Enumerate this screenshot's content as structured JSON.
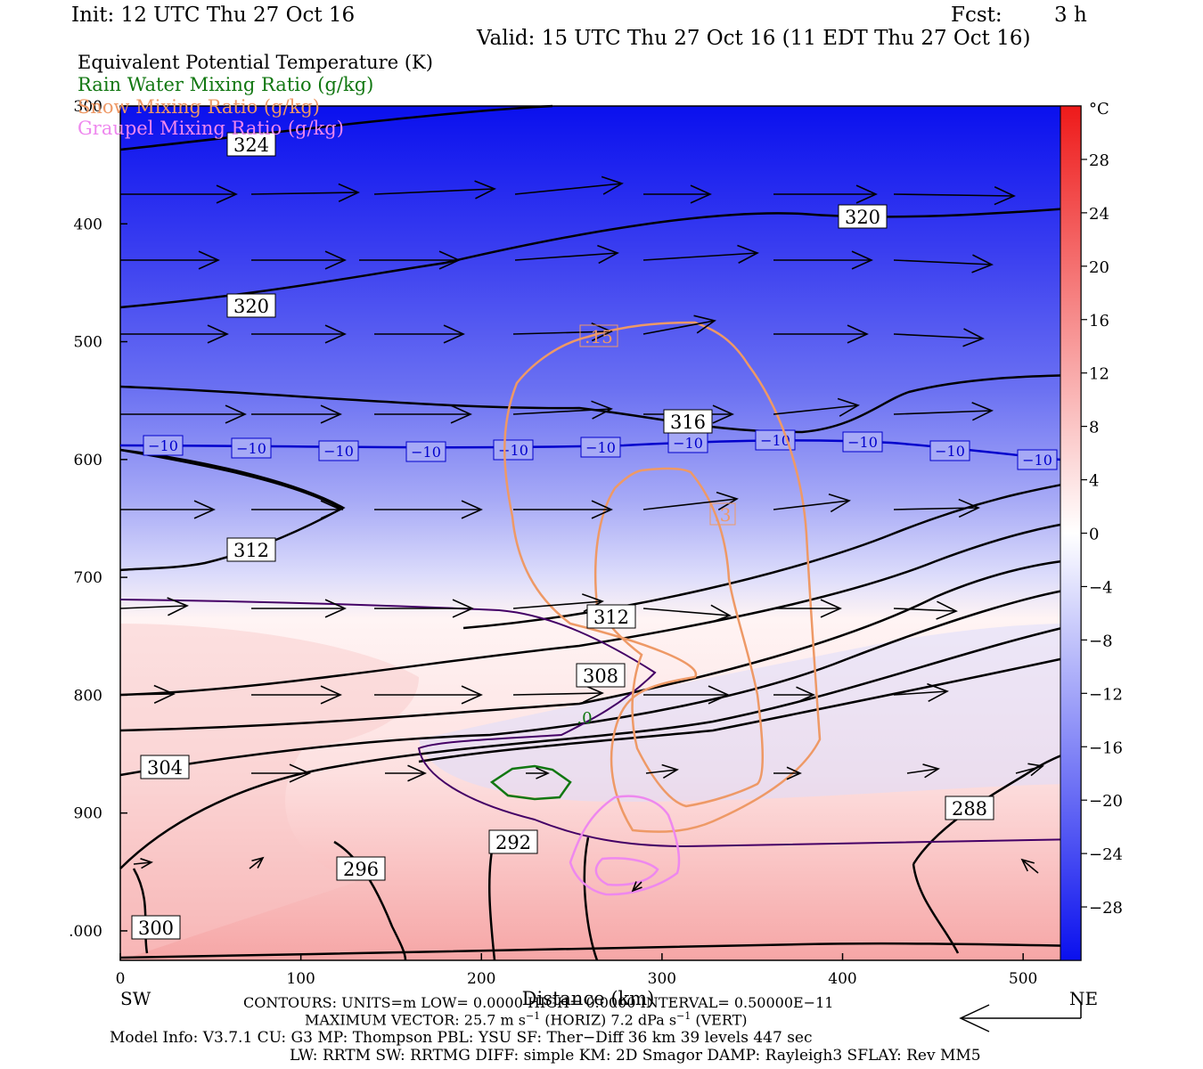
{
  "header": {
    "init": "Init: 12 UTC Thu 27 Oct 16",
    "fcst_label": "Fcst:",
    "fcst_value": "3 h",
    "valid": "Valid: 15 UTC Thu 27 Oct 16 (11 EDT Thu 27 Oct 16)"
  },
  "legend": [
    {
      "label": "Equivalent Potential Temperature (K)",
      "color": "#000000"
    },
    {
      "label": "Rain Water Mixing Ratio (g/kg)",
      "color": "#117711"
    },
    {
      "label": "Snow Mixing Ratio (g/kg)",
      "color": "#ee9966"
    },
    {
      "label": "Graupel Mixing Ratio (g/kg)",
      "color": "#ee88ee"
    }
  ],
  "chart_data": {
    "type": "cross-section",
    "x_axis": {
      "label": "Distance (km)",
      "range": [
        0,
        532
      ],
      "ticks": [
        0,
        100,
        200,
        300,
        400,
        500
      ],
      "left_label": "SW",
      "right_label": "NE"
    },
    "y_axis": {
      "range": [
        300,
        1025
      ],
      "inverted": true,
      "ticks": [
        "300",
        "400",
        "500",
        "600",
        "700",
        "800",
        "900",
        "1000"
      ],
      "tick_labels": [
        "300",
        "400",
        "500",
        "600",
        "700",
        "800",
        "900",
        ".000"
      ]
    },
    "colorbar": {
      "unit": "°C",
      "ticks": [
        "28",
        "24",
        "20",
        "16",
        "12",
        "8",
        "4",
        "0",
        "−4",
        "−8",
        "−12",
        "−16",
        "−20",
        "−24",
        "−28"
      ],
      "range": [
        -32,
        32
      ],
      "cold_color": "#0a10ee",
      "warm_color": "#ee1a1a"
    },
    "temperature_contour": {
      "value": -10,
      "labels": [
        "−10",
        "−10",
        "−10",
        "−10",
        "−10",
        "−10",
        "−10",
        "−10",
        "−10",
        "−10",
        "−10"
      ],
      "color": "#0000cc"
    },
    "theta_e_labels": [
      "324",
      "320",
      "320",
      "316",
      "312",
      "312",
      "308",
      "304",
      "300",
      "296",
      "292",
      "288"
    ],
    "snow_labels": [
      ".15",
      ".3"
    ],
    "rain_labels": [
      ".0"
    ],
    "max_vector": {
      "horiz": "25.7",
      "vert": "7.2"
    }
  },
  "footer": {
    "contours": "CONTOURS:  UNITS=m   LOW=  0.0000    HIGH=  0.0000      INTERVAL=  0.50000E−11",
    "max_vector_prefix": "MAXIMUM VECTOR:  25.7 m s",
    "max_vector_sup1": "−1",
    "max_vector_mid": " (HORIZ)          7.2 dPa s",
    "max_vector_sup2": "−1",
    "max_vector_suffix": " (VERT)",
    "model_info": "Model Info: V3.7.1    CU: G3       MP: Thompson     PBL: YSU        SF: Ther−Diff    36 km    39 levels   447 sec",
    "model_info2": "LW: RRTM      SW: RRTMG   DIFF: simple KM: 2D Smagor DAMP: Rayleigh3   SFLAY: Rev MM5"
  }
}
